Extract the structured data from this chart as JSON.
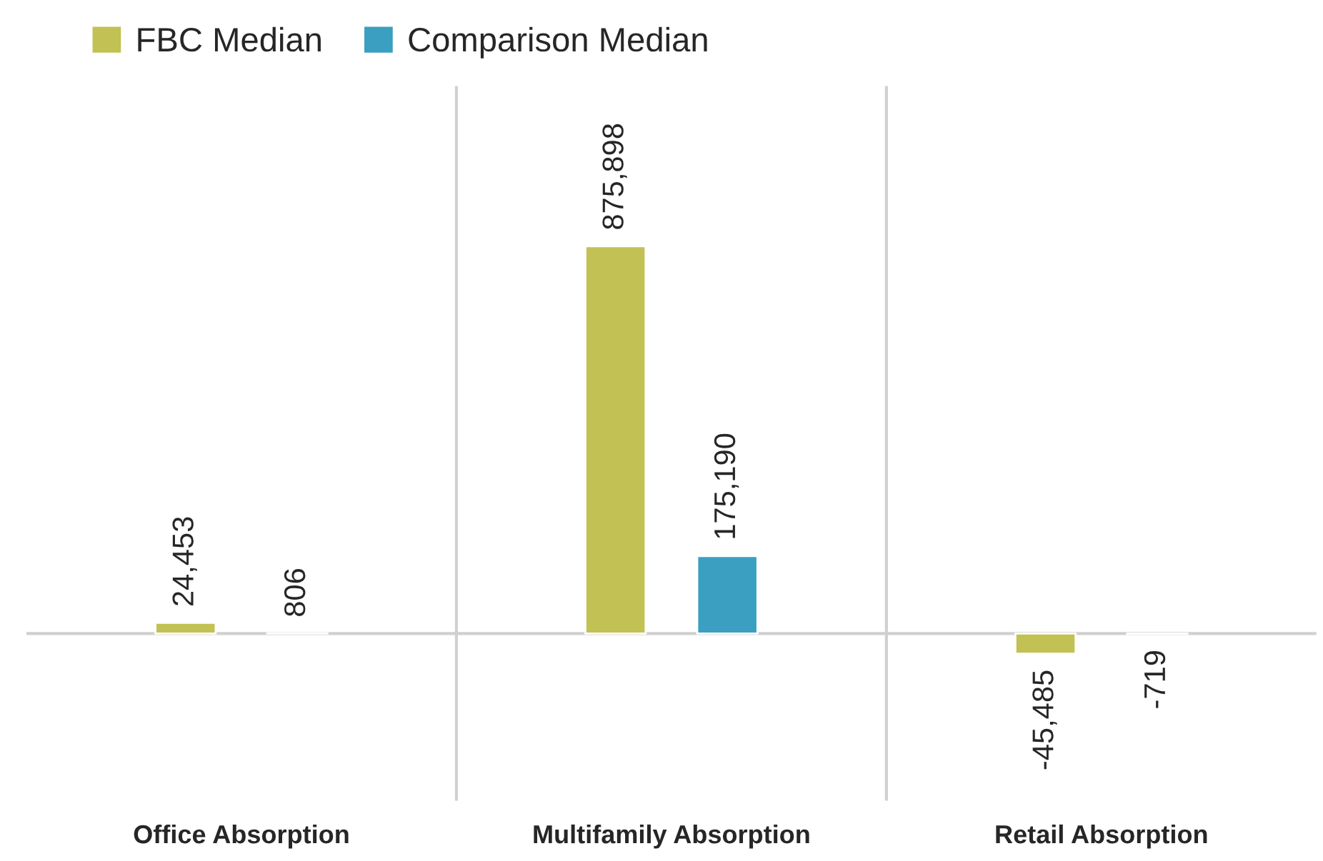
{
  "chart_data": {
    "type": "bar",
    "categories": [
      "Office Absorption",
      "Multifamily Absorption",
      "Retail Absorption"
    ],
    "series": [
      {
        "name": "FBC Median",
        "color": "#c2c153",
        "values": [
          24453,
          875898,
          -45485
        ],
        "value_labels": [
          "24,453",
          "875,898",
          "-45,485"
        ]
      },
      {
        "name": "Comparison Median",
        "color": "#3a9fc0",
        "values": [
          806,
          175190,
          -719
        ],
        "value_labels": [
          "806",
          "175,190",
          "-719"
        ]
      }
    ],
    "ylim": [
      -378000,
      1238000
    ],
    "tick_labels": "x",
    "grid": "x",
    "legend": "top left"
  }
}
